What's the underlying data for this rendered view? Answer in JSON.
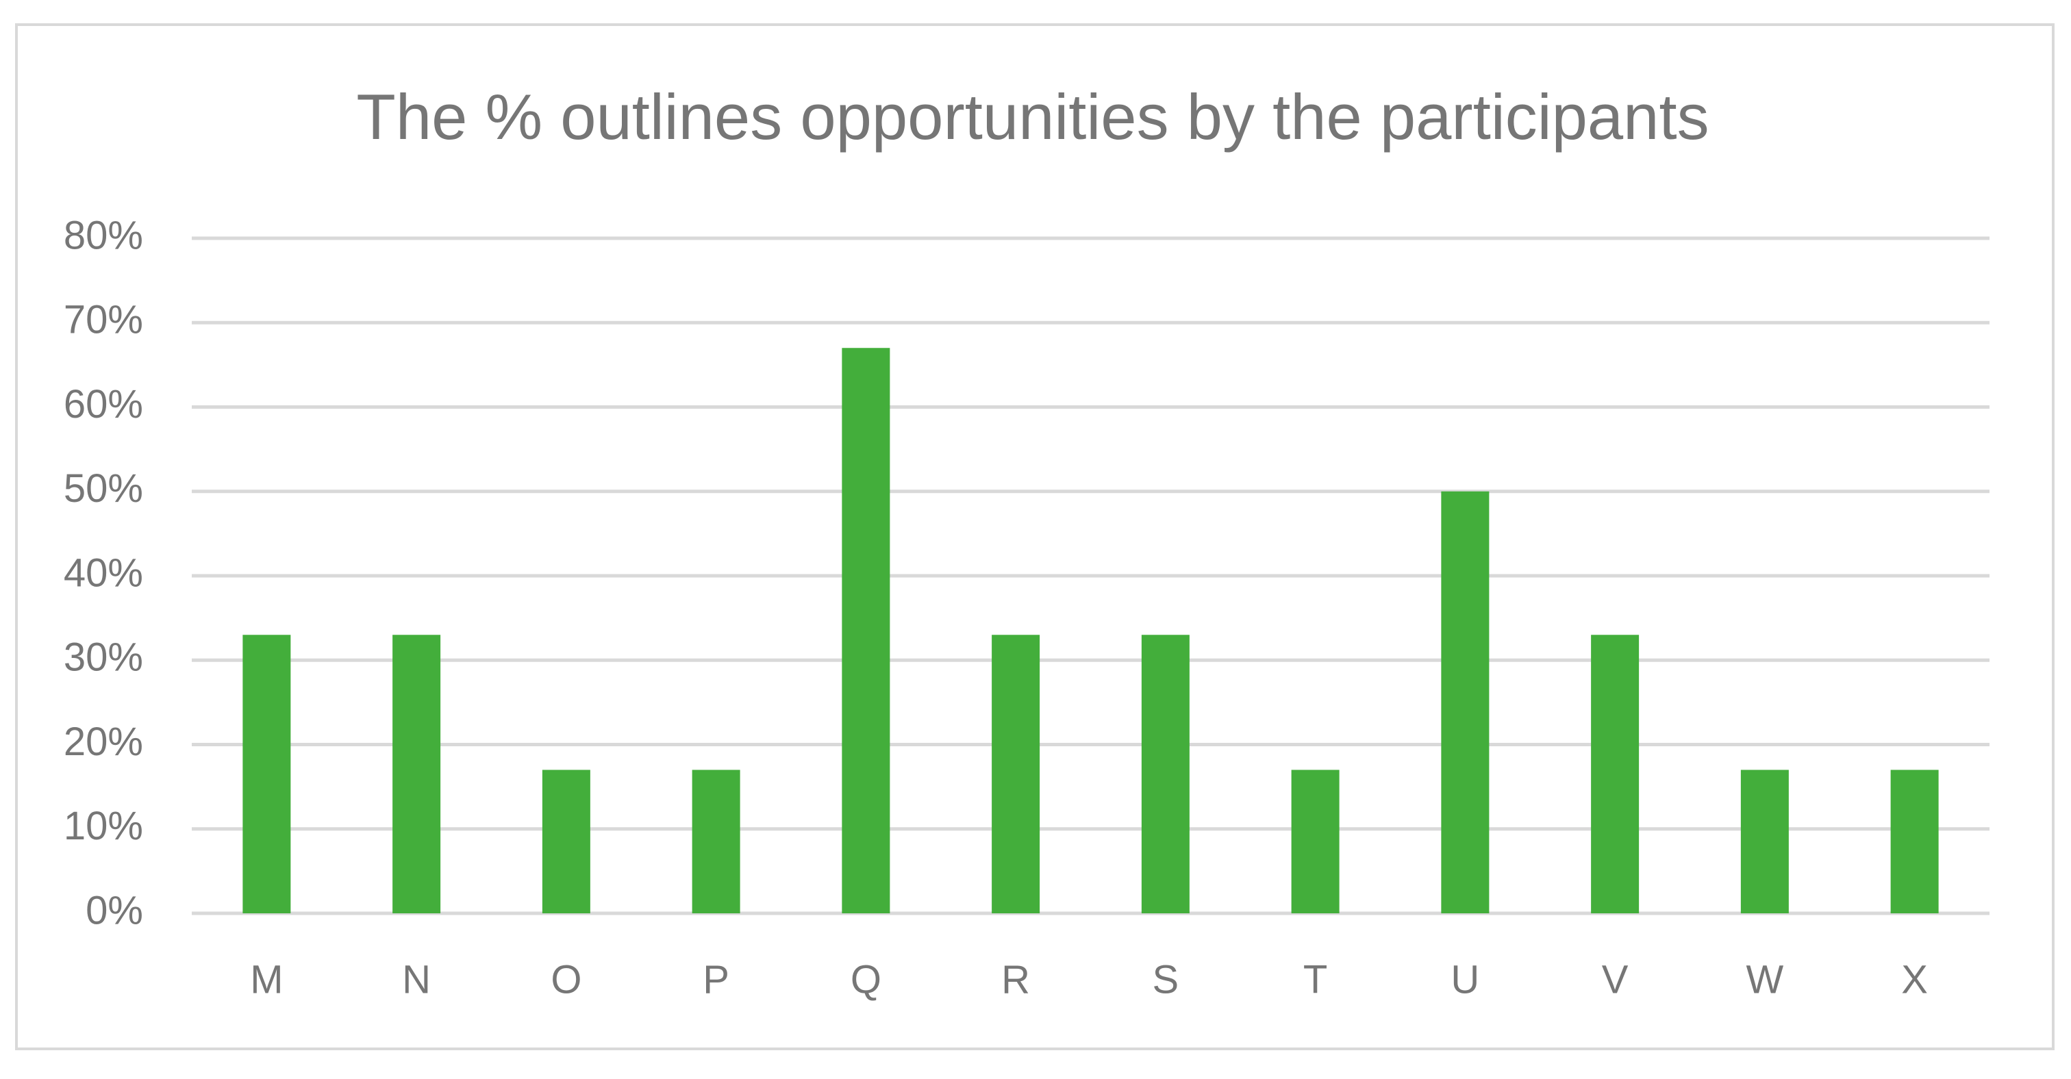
{
  "chart_data": {
    "type": "bar",
    "title": "The % outlines opportunities by the participants",
    "categories": [
      "M",
      "N",
      "O",
      "P",
      "Q",
      "R",
      "S",
      "T",
      "U",
      "V",
      "W",
      "X"
    ],
    "values": [
      33,
      33,
      17,
      17,
      67,
      33,
      33,
      17,
      50,
      33,
      17,
      17
    ],
    "color": "#43ae3b",
    "ylim": [
      0,
      80
    ],
    "yticks": [
      {
        "value": 0,
        "label": "0%"
      },
      {
        "value": 10,
        "label": "10%"
      },
      {
        "value": 20,
        "label": "20%"
      },
      {
        "value": 30,
        "label": "30%"
      },
      {
        "value": 40,
        "label": "40%"
      },
      {
        "value": 50,
        "label": "50%"
      },
      {
        "value": 60,
        "label": "60%"
      },
      {
        "value": 70,
        "label": "70%"
      },
      {
        "value": 80,
        "label": "80%"
      }
    ],
    "grid": true
  }
}
